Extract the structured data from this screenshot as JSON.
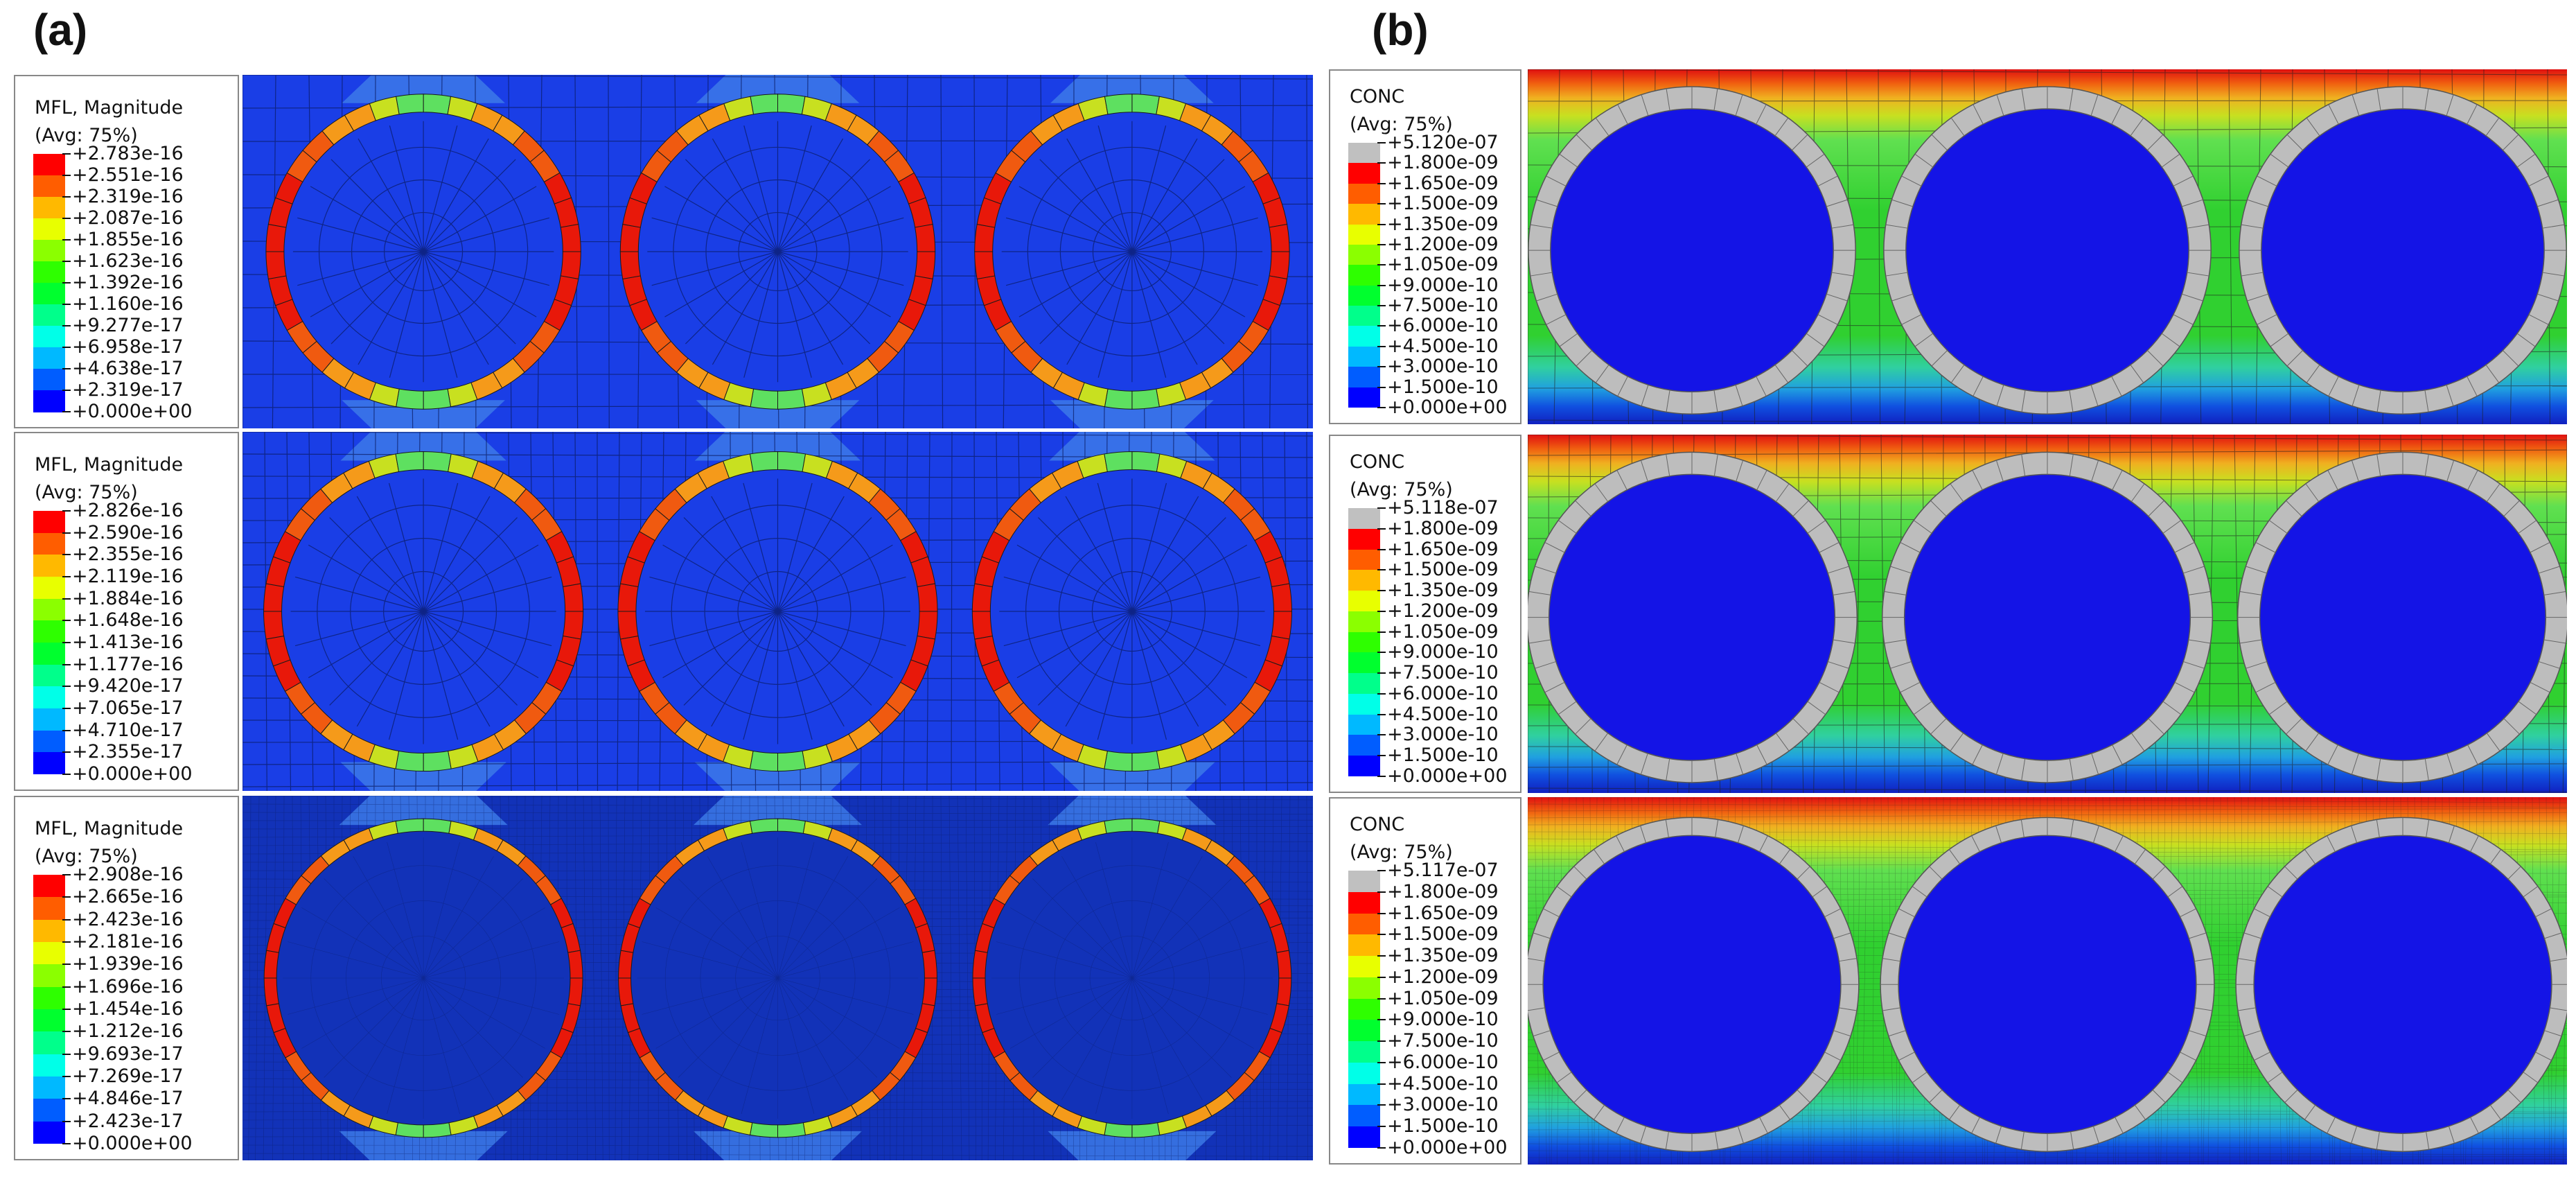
{
  "panels": [
    {
      "label": "(a)"
    },
    {
      "label": "(b)"
    }
  ],
  "mfl_palette": [
    "#0000ff",
    "#005dff",
    "#00b9ff",
    "#00ffe8",
    "#00ff8b",
    "#00ff2e",
    "#2eff00",
    "#8bff00",
    "#e8ff00",
    "#ffb900",
    "#ff5d00",
    "#ff0000"
  ],
  "conc_palette": [
    "#0000ff",
    "#005dff",
    "#00b9ff",
    "#00ffe8",
    "#00ff8b",
    "#00ff2e",
    "#2eff00",
    "#8bff00",
    "#e8ff00",
    "#ffb900",
    "#ff5d00",
    "#ff0000",
    "#c0c0c0"
  ],
  "legends_a": [
    {
      "title": "MFL, Magnitude",
      "avg": "(Avg: 75%)",
      "values": [
        "+2.783e-16",
        "+2.551e-16",
        "+2.319e-16",
        "+2.087e-16",
        "+1.855e-16",
        "+1.623e-16",
        "+1.392e-16",
        "+1.160e-16",
        "+9.277e-17",
        "+6.958e-17",
        "+4.638e-17",
        "+2.319e-17",
        "+0.000e+00"
      ]
    },
    {
      "title": "MFL, Magnitude",
      "avg": "(Avg: 75%)",
      "values": [
        "+2.826e-16",
        "+2.590e-16",
        "+2.355e-16",
        "+2.119e-16",
        "+1.884e-16",
        "+1.648e-16",
        "+1.413e-16",
        "+1.177e-16",
        "+9.420e-17",
        "+7.065e-17",
        "+4.710e-17",
        "+2.355e-17",
        "+0.000e+00"
      ]
    },
    {
      "title": "MFL, Magnitude",
      "avg": "(Avg: 75%)",
      "values": [
        "+2.908e-16",
        "+2.665e-16",
        "+2.423e-16",
        "+2.181e-16",
        "+1.939e-16",
        "+1.696e-16",
        "+1.454e-16",
        "+1.212e-16",
        "+9.693e-17",
        "+7.269e-17",
        "+4.846e-17",
        "+2.423e-17",
        "+0.000e+00"
      ]
    }
  ],
  "legends_b": [
    {
      "title": "CONC",
      "avg": "(Avg: 75%)",
      "values": [
        "+5.120e-07",
        "+1.800e-09",
        "+1.650e-09",
        "+1.500e-09",
        "+1.350e-09",
        "+1.200e-09",
        "+1.050e-09",
        "+9.000e-10",
        "+7.500e-10",
        "+6.000e-10",
        "+4.500e-10",
        "+3.000e-10",
        "+1.500e-10",
        "+0.000e+00"
      ]
    },
    {
      "title": "CONC",
      "avg": "(Avg: 75%)",
      "values": [
        "+5.118e-07",
        "+1.800e-09",
        "+1.650e-09",
        "+1.500e-09",
        "+1.350e-09",
        "+1.200e-09",
        "+1.050e-09",
        "+9.000e-10",
        "+7.500e-10",
        "+6.000e-10",
        "+4.500e-10",
        "+3.000e-10",
        "+1.500e-10",
        "+0.000e+00"
      ]
    },
    {
      "title": "CONC",
      "avg": "(Avg: 75%)",
      "values": [
        "+5.117e-07",
        "+1.800e-09",
        "+1.650e-09",
        "+1.500e-09",
        "+1.350e-09",
        "+1.200e-09",
        "+1.050e-09",
        "+9.000e-10",
        "+7.500e-10",
        "+6.000e-10",
        "+4.500e-10",
        "+3.000e-10",
        "+1.500e-10",
        "+0.000e+00"
      ]
    }
  ]
}
